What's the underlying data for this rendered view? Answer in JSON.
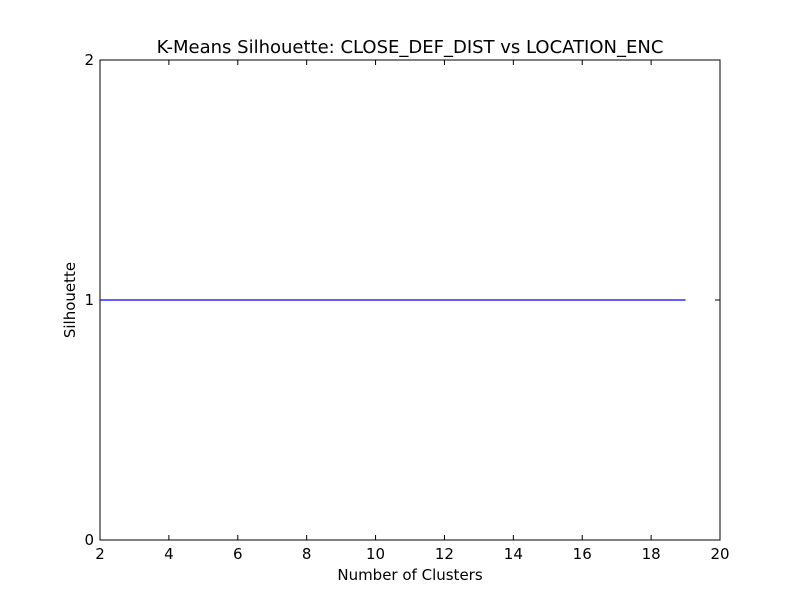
{
  "chart_data": {
    "type": "line",
    "title": "K-Means Silhouette: CLOSE_DEF_DIST vs LOCATION_ENC",
    "xlabel": "Number of Clusters",
    "ylabel": "Silhouette",
    "xlim": [
      2,
      20
    ],
    "ylim": [
      0,
      2
    ],
    "xticks": [
      "2",
      "4",
      "6",
      "8",
      "10",
      "12",
      "14",
      "16",
      "18",
      "20"
    ],
    "yticks": [
      "0",
      "1",
      "2"
    ],
    "grid": false,
    "legend": "none",
    "series": [
      {
        "color": "#0000ff",
        "x": [
          2,
          3,
          4,
          5,
          6,
          7,
          8,
          9,
          10,
          11,
          12,
          13,
          14,
          15,
          16,
          17,
          18,
          19
        ],
        "y": [
          1,
          1,
          1,
          1,
          1,
          1,
          1,
          1,
          1,
          1,
          1,
          1,
          1,
          1,
          1,
          1,
          1,
          1
        ]
      }
    ]
  }
}
